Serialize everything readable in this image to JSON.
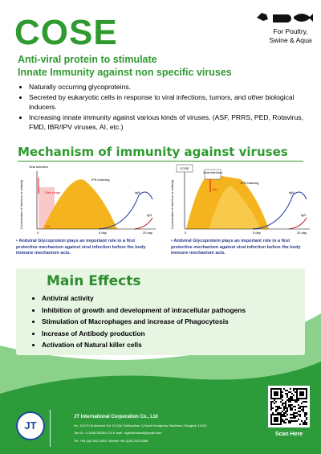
{
  "header": {
    "title": "COSE",
    "audience": "For Poultry, Swine & Aqua",
    "subtitle_1": "Anti-viral protein to stimulate",
    "subtitle_2": "Innate Immunity against non specific viruses"
  },
  "bullets": [
    "Naturally occurring glycoproteins.",
    "Secreted by eukaryotic cells in response to viral infections, tumors, and other biological inducers.",
    "Increasing innate immunity against various kinds of viruses.  (ASF, PRRS, PED, Rotavirus, FMD, IBR/IPV viruses, AI, etc.)"
  ],
  "mechanism": {
    "title": "Mechanism of immunity against viruses",
    "left": {
      "viral_infection": "Viral infection",
      "ifn": "IFN inducing",
      "igm": "IgM",
      "igg": "IgG",
      "risk": "Risk range",
      "zero": "0",
      "hour": "12h",
      "day5": "5 day",
      "day20": "20 day",
      "y_label": "Concentration of interferon or antibody"
    },
    "right": {
      "cose": "COSE",
      "viral_infection": "Viral infection",
      "ifn": "IFN inducing",
      "igm": "IgM",
      "igg": "IgG",
      "zero": "0",
      "hour": "12h",
      "day5": "5 day",
      "day20": "20 day",
      "y_label": "Concentration of interferon or antibody"
    },
    "note_left": "Antiviral Glycoprotein plays an important role in a first protective mechanism against viral infection before the body immune mechanism acts.",
    "note_right": "Antiviral Glycoprotein plays an important role in a first protective mechanism against viral infection before the body immune mechanism acts."
  },
  "main_effects": {
    "title": "Main Effects",
    "items": [
      "Antiviral activity",
      "Inhibition of growth and development of intracellular pathogens",
      "Stimulation of Macrophages and increase of Phagocytosis",
      "Increase of Antibody production",
      "Activation of Natural killer cells"
    ]
  },
  "footer": {
    "company": "JT International Corporation Co., Ltd",
    "address": "No. 15/170 Sukhumvit Soi 10 (Soi Sukhapiban 1) North Klongtoey, Watthana, Bangkok 10110",
    "tax": "Tax ID : 0-1055-55156-174    E-mail : sgleefriutland@gmail.com",
    "tel": "Tel: +66 (0)2-042-0054 / Mobile +66 (0)81-922-6088",
    "logo": "JT",
    "scan": "Scan Here"
  }
}
